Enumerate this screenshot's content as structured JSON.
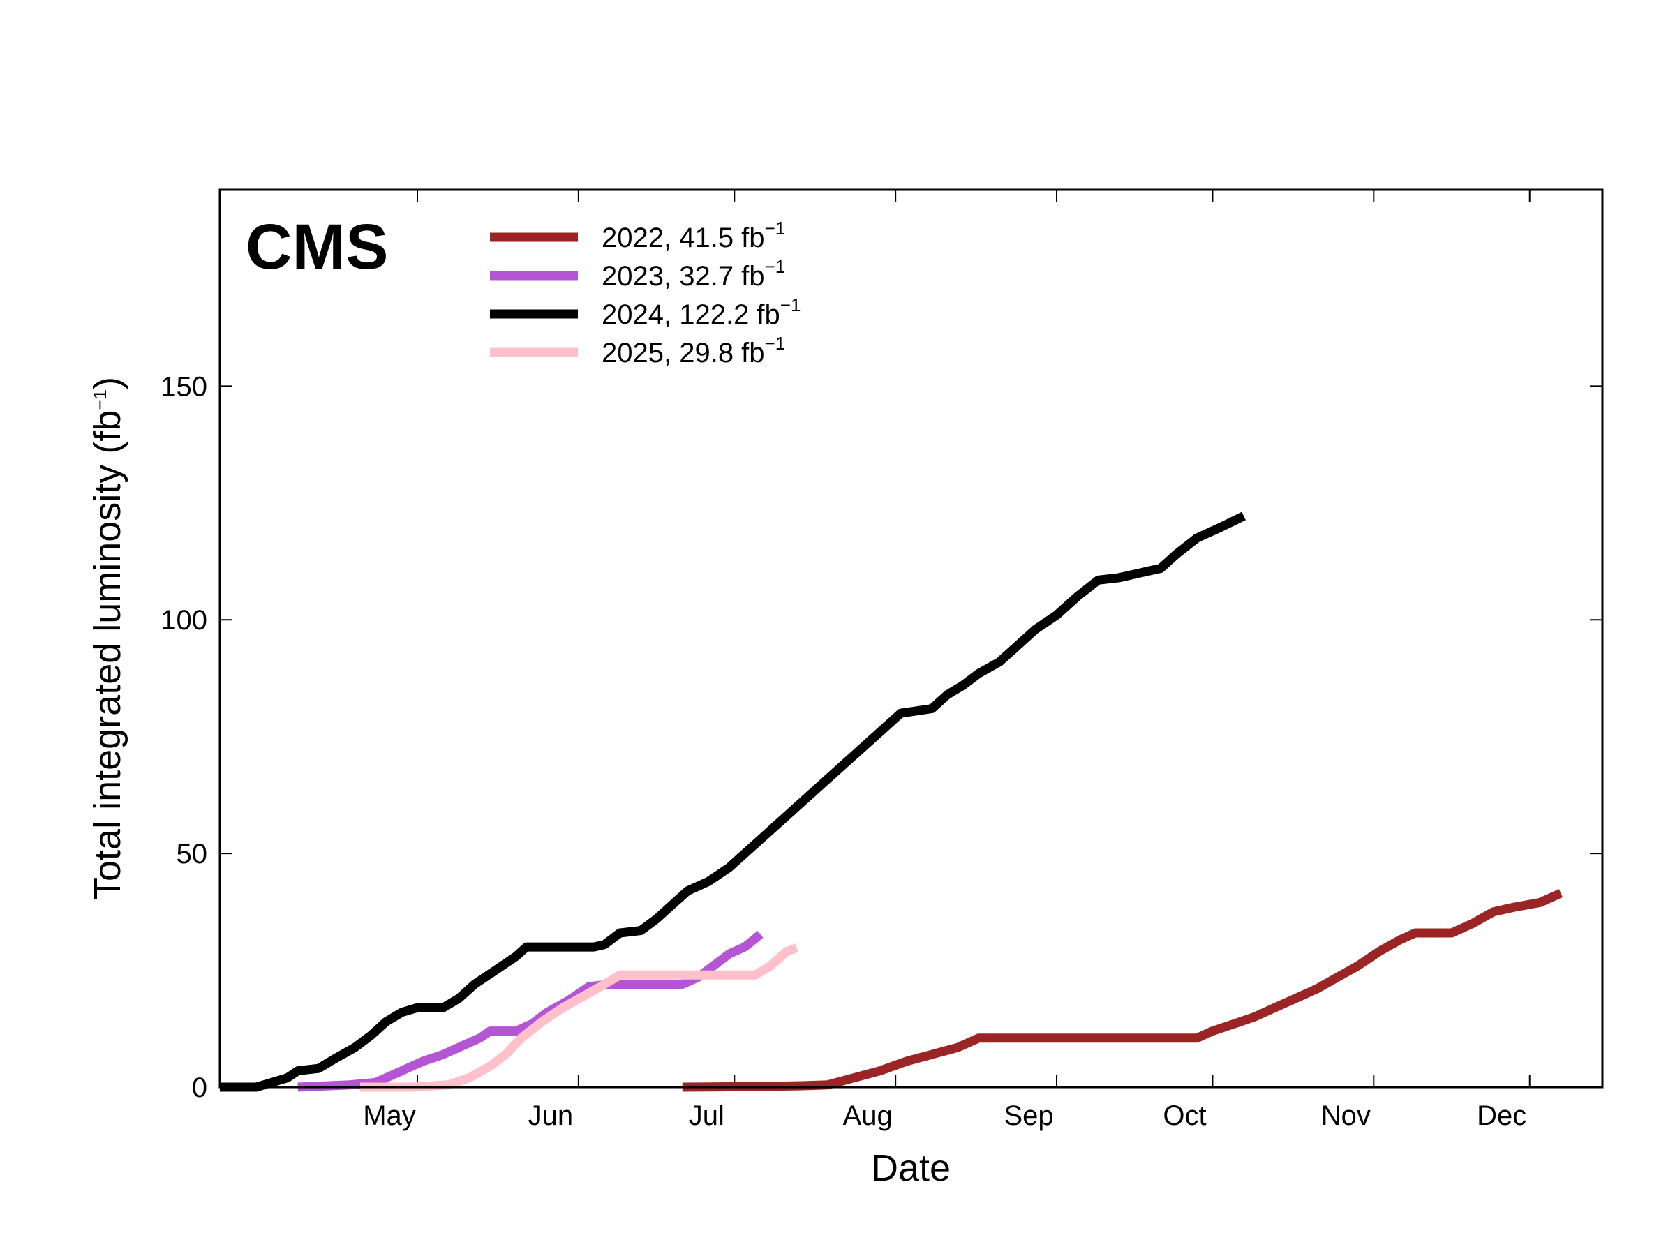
{
  "chart_data": {
    "type": "line",
    "brand": "CMS",
    "xlabel": "Date",
    "ylabel": "Total integrated luminosity (fb",
    "ylabel_unit_exponent": "−1",
    "ylabel_suffix": ")",
    "x_unit": "day of year",
    "xlim": [
      83,
      349
    ],
    "ylim": [
      0,
      192
    ],
    "yticks": [
      0,
      50,
      100,
      150
    ],
    "xticks": [
      {
        "label": "May",
        "value": 121
      },
      {
        "label": "Jun",
        "value": 152
      },
      {
        "label": "Jul",
        "value": 182
      },
      {
        "label": "Aug",
        "value": 213
      },
      {
        "label": "Sep",
        "value": 244
      },
      {
        "label": "Oct",
        "value": 274
      },
      {
        "label": "Nov",
        "value": 305
      },
      {
        "label": "Dec",
        "value": 335
      }
    ],
    "legend_position": "top-left",
    "series": [
      {
        "name": "2022, 41.5 fb",
        "name_exponent": "−1",
        "color": "#9b2525",
        "points": [
          [
            172,
            0
          ],
          [
            185,
            0.1
          ],
          [
            195,
            0.3
          ],
          [
            200,
            0.5
          ],
          [
            205,
            2
          ],
          [
            210,
            3.5
          ],
          [
            215,
            5.5
          ],
          [
            220,
            7
          ],
          [
            225,
            8.5
          ],
          [
            229,
            10.5
          ],
          [
            235,
            10.5
          ],
          [
            245,
            10.5
          ],
          [
            255,
            10.5
          ],
          [
            265,
            10.5
          ],
          [
            271,
            10.5
          ],
          [
            274,
            12
          ],
          [
            278,
            13.5
          ],
          [
            282,
            15
          ],
          [
            286,
            17
          ],
          [
            290,
            19
          ],
          [
            294,
            21
          ],
          [
            298,
            23.5
          ],
          [
            302,
            26
          ],
          [
            306,
            29
          ],
          [
            310,
            31.5
          ],
          [
            313,
            33
          ],
          [
            320,
            33
          ],
          [
            324,
            35
          ],
          [
            328,
            37.5
          ],
          [
            332,
            38.5
          ],
          [
            337,
            39.5
          ],
          [
            341,
            41.5
          ]
        ]
      },
      {
        "name": "2023, 32.7 fb",
        "name_exponent": "−1",
        "color": "#b455d3",
        "points": [
          [
            98,
            0
          ],
          [
            108,
            0.5
          ],
          [
            113,
            1
          ],
          [
            116,
            2.5
          ],
          [
            119,
            4
          ],
          [
            122,
            5.5
          ],
          [
            126,
            7
          ],
          [
            130,
            9
          ],
          [
            133,
            10.5
          ],
          [
            135,
            12
          ],
          [
            140,
            12
          ],
          [
            143,
            13.5
          ],
          [
            146,
            16
          ],
          [
            150,
            18.5
          ],
          [
            154,
            21.5
          ],
          [
            158,
            22
          ],
          [
            163,
            22
          ],
          [
            168,
            22
          ],
          [
            172,
            22
          ],
          [
            175,
            23.5
          ],
          [
            178,
            26
          ],
          [
            181,
            28.5
          ],
          [
            184,
            30
          ],
          [
            187,
            32.7
          ]
        ]
      },
      {
        "name": "2024, 122.2 fb",
        "name_exponent": "−1",
        "color": "#000000",
        "points": [
          [
            83,
            0
          ],
          [
            90,
            0
          ],
          [
            93,
            1
          ],
          [
            96,
            2
          ],
          [
            98,
            3.5
          ],
          [
            102,
            4
          ],
          [
            105,
            6
          ],
          [
            109,
            8.5
          ],
          [
            112,
            11
          ],
          [
            115,
            14
          ],
          [
            118,
            16
          ],
          [
            121,
            17
          ],
          [
            126,
            17
          ],
          [
            129,
            19
          ],
          [
            132,
            22
          ],
          [
            136,
            25
          ],
          [
            140,
            28
          ],
          [
            142,
            30
          ],
          [
            146,
            30
          ],
          [
            150,
            30
          ],
          [
            155,
            30
          ],
          [
            157,
            30.5
          ],
          [
            160,
            33
          ],
          [
            164,
            33.5
          ],
          [
            167,
            36
          ],
          [
            170,
            39
          ],
          [
            173,
            42
          ],
          [
            177,
            44
          ],
          [
            181,
            47
          ],
          [
            185,
            51
          ],
          [
            188,
            54
          ],
          [
            192,
            58
          ],
          [
            196,
            62
          ],
          [
            200,
            66
          ],
          [
            205,
            71
          ],
          [
            210,
            76
          ],
          [
            214,
            80
          ],
          [
            220,
            81
          ],
          [
            223,
            84
          ],
          [
            226,
            86
          ],
          [
            229,
            88.5
          ],
          [
            233,
            91
          ],
          [
            236,
            94
          ],
          [
            240,
            98
          ],
          [
            244,
            101
          ],
          [
            248,
            105
          ],
          [
            252,
            108.5
          ],
          [
            256,
            109
          ],
          [
            260,
            110
          ],
          [
            264,
            111
          ],
          [
            267,
            114
          ],
          [
            271,
            117.5
          ],
          [
            275,
            119.5
          ],
          [
            280,
            122.2
          ]
        ]
      },
      {
        "name": "2025, 29.8 fb",
        "name_exponent": "−1",
        "color": "#ffc0cb",
        "points": [
          [
            110,
            0
          ],
          [
            120,
            0
          ],
          [
            127,
            0.5
          ],
          [
            131,
            2
          ],
          [
            135,
            4.5
          ],
          [
            138,
            7
          ],
          [
            141,
            10.5
          ],
          [
            145,
            14
          ],
          [
            149,
            17
          ],
          [
            153,
            19.5
          ],
          [
            157,
            22
          ],
          [
            160,
            24
          ],
          [
            165,
            24
          ],
          [
            170,
            24
          ],
          [
            175,
            24
          ],
          [
            180,
            24
          ],
          [
            186,
            24
          ],
          [
            189,
            26
          ],
          [
            192,
            29
          ],
          [
            194,
            29.8
          ]
        ]
      }
    ]
  }
}
